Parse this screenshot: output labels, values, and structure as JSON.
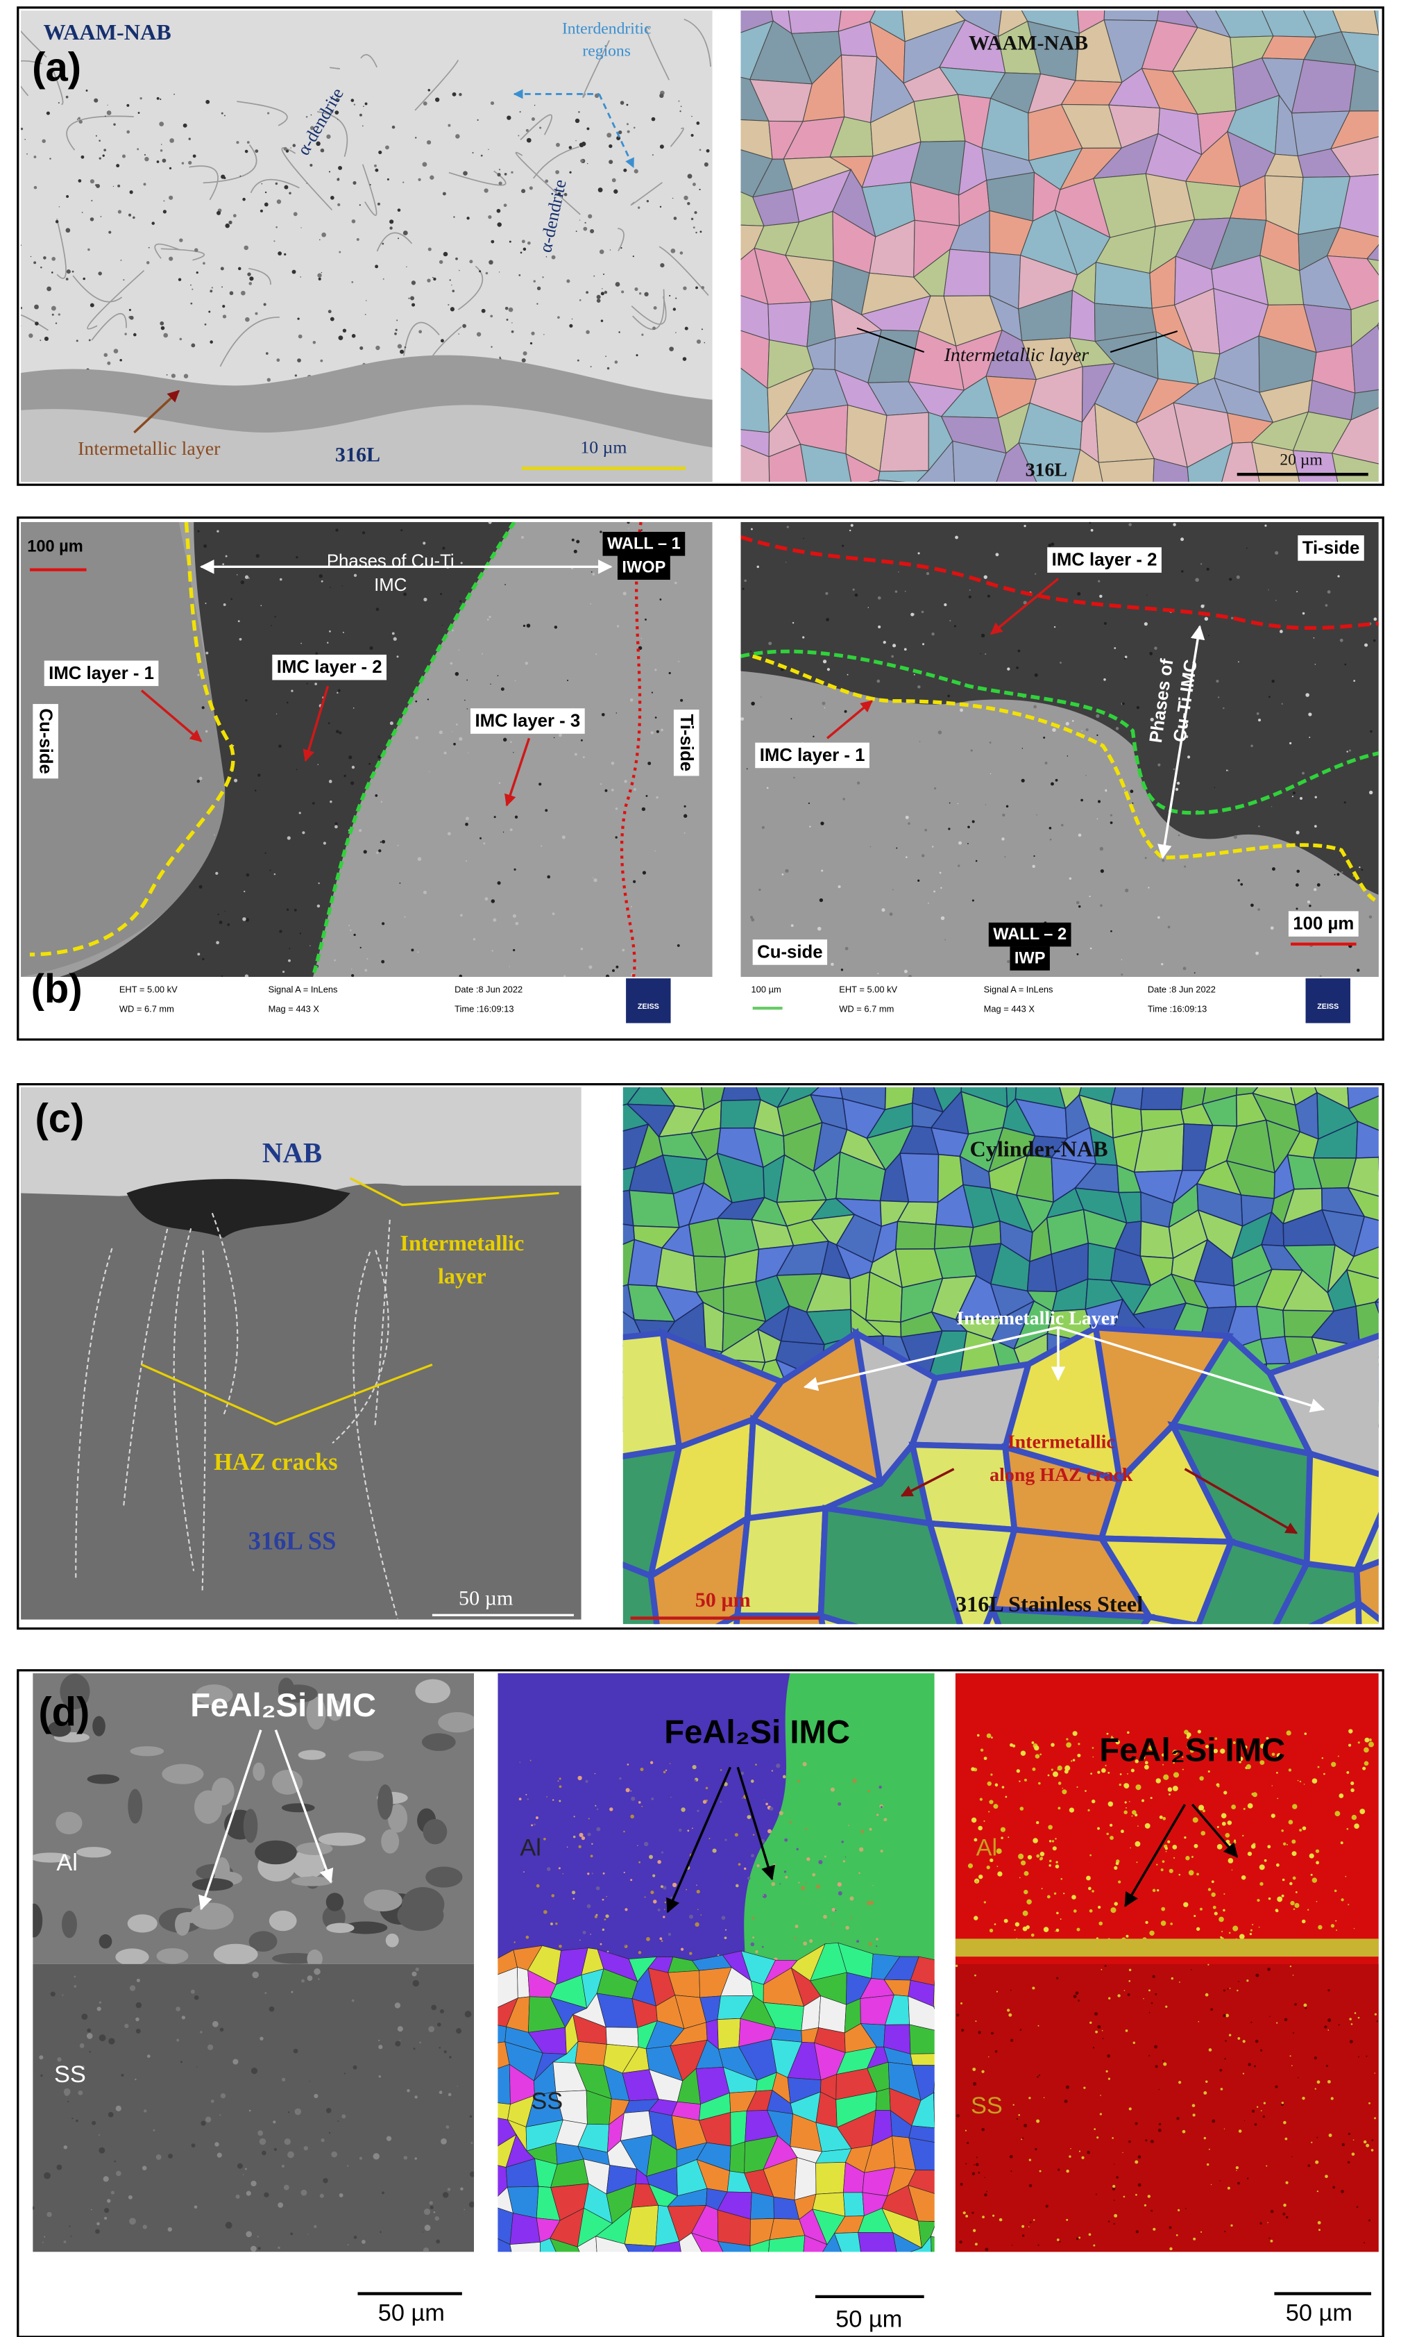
{
  "panels": [
    {
      "label": "(a)",
      "images": [
        {
          "labels": [
            "WAAM-NAB",
            "Interdendritic",
            "regions",
            "α-dendrite",
            "α-dendrite",
            "Intermetallic layer",
            "316L",
            "10 µm"
          ]
        },
        {
          "labels": [
            "WAAM-NAB",
            "Intermetallic layer",
            "316L",
            "20 µm"
          ]
        }
      ]
    },
    {
      "label": "(b)",
      "images": [
        {
          "labels": [
            "100 µm",
            "Phases of Cu-Ti",
            "IMC",
            "WALL – 1",
            "IWOP",
            "IMC layer - 1",
            "IMC layer - 2",
            "IMC layer - 3",
            "Cu-side",
            "Ti-side",
            "EHT = 5.00 kV",
            "WD = 6.7 mm",
            "Signal A = InLens",
            "Mag = 443 X",
            "Date :8 Jun 2022",
            "Time :16:09:13",
            "ZEISS"
          ]
        },
        {
          "labels": [
            "IMC layer - 2",
            "Ti-side",
            "Phases of",
            "Cu-Ti IMC",
            "IMC layer - 1",
            "Cu-side",
            "WALL – 2",
            "IWP",
            "100 µm",
            "100 µm",
            "EHT = 5.00 kV",
            "WD = 6.7 mm",
            "Signal A = InLens",
            "Mag = 443 X",
            "Date :8 Jun 2022",
            "Time :16:09:13",
            "ZEISS"
          ]
        }
      ]
    },
    {
      "label": "(c)",
      "images": [
        {
          "labels": [
            "NAB",
            "Intermetallic",
            "layer",
            "HAZ cracks",
            "316L SS",
            "50 µm"
          ]
        },
        {
          "labels": [
            "Cylinder-NAB",
            "Intermetallic Layer",
            "Intermetallic",
            "along HAZ crack",
            "50 µm",
            "316L Stainless Steel"
          ]
        }
      ]
    },
    {
      "label": "(d)",
      "images": [
        {
          "labels": [
            "FeAl₂Si IMC",
            "Al",
            "SS",
            "50 µm"
          ]
        },
        {
          "labels": [
            "FeAl₂Si IMC",
            "Al",
            "SS",
            "50 µm"
          ]
        },
        {
          "labels": [
            "FeAl₂Si IMC",
            "Al",
            "SS",
            "50 µm"
          ]
        }
      ]
    }
  ]
}
